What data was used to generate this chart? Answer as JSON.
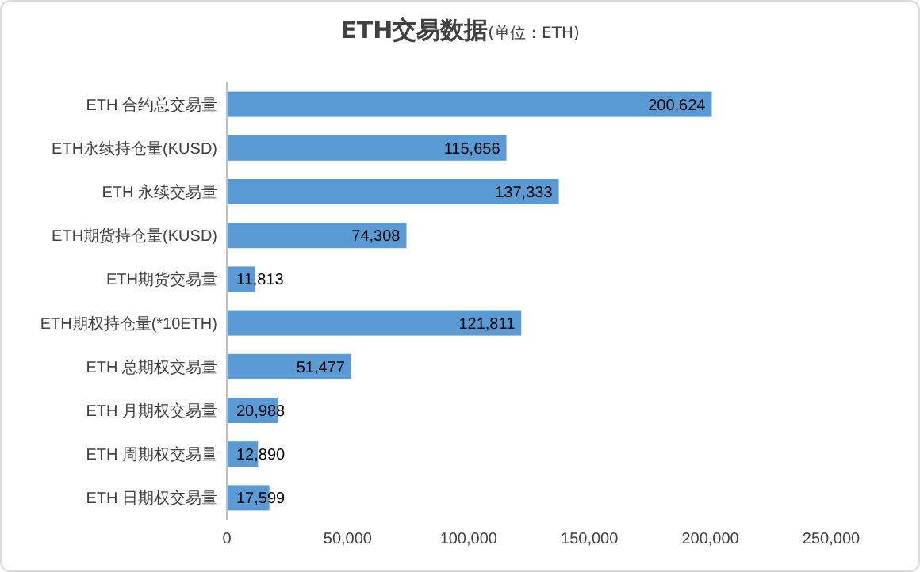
{
  "chart_data": {
    "type": "bar",
    "orientation": "horizontal",
    "title": "ETH交易数据",
    "subtitle": "(单位：ETH)",
    "categories": [
      "ETH 合约总交易量",
      "ETH永续持仓量(KUSD)",
      "ETH 永续交易量",
      "ETH期货持仓量(KUSD)",
      "ETH期货交易量",
      "ETH期权持仓量(*10ETH)",
      "ETH 总期权交易量",
      "ETH 月期权交易量",
      "ETH 周期权交易量",
      "ETH 日期权交易量"
    ],
    "values": [
      200624,
      115656,
      137333,
      74308,
      11813,
      121811,
      51477,
      20988,
      12890,
      17599
    ],
    "color": "#5b9bd5",
    "xlim": [
      0,
      250000
    ],
    "xticks": [
      0,
      {
        "value": 50000,
        "label": "50,000"
      },
      {
        "value": 100000,
        "label": "100,000"
      },
      {
        "value": 150000,
        "label": "150,000"
      },
      {
        "value": 200000,
        "label": "200,000"
      },
      {
        "value": 250000,
        "label": "250,000"
      }
    ],
    "value_labels": [
      "200,624",
      "115,656",
      "137,333",
      "74,308",
      "11,813",
      "121,811",
      "51,477",
      "20,988",
      "12,890",
      "17,599"
    ],
    "grid": false
  }
}
